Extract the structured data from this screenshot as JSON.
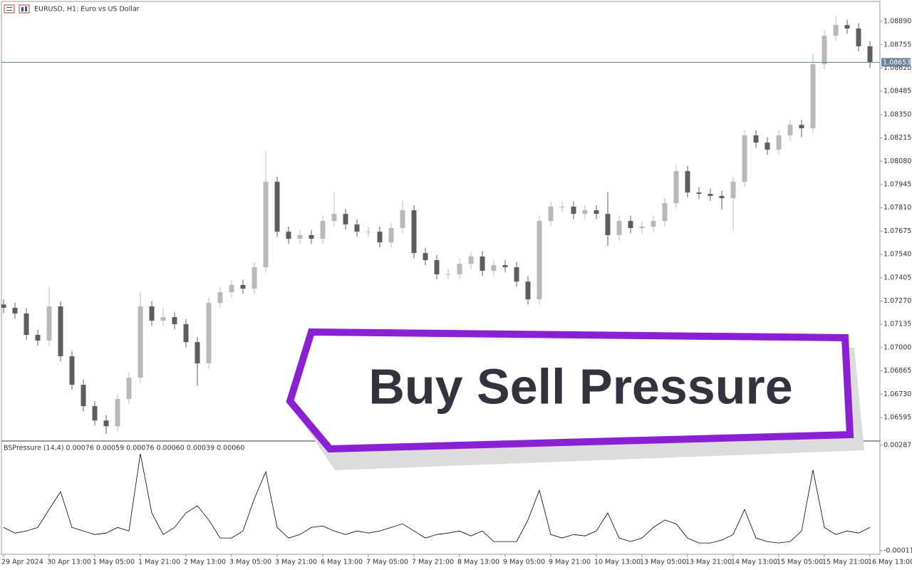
{
  "chart_data": [
    {
      "type": "candlestick",
      "title": "EURUSD, H1:  Euro vs US Dollar",
      "categories": [
        "29 Apr 2024",
        null,
        null,
        null,
        "30 Apr 13:00",
        null,
        null,
        null,
        "1 May 05:00",
        null,
        null,
        null,
        "1 May 21:00",
        null,
        null,
        null,
        "2 May 13:00",
        null,
        null,
        null,
        "3 May 05:00",
        null,
        null,
        null,
        "3 May 21:00",
        null,
        null,
        null,
        "6 May 13:00",
        null,
        null,
        null,
        "7 May 05:00",
        null,
        null,
        null,
        "7 May 21:00",
        null,
        null,
        null,
        "8 May 13:00",
        null,
        null,
        null,
        "9 May 05:00",
        null,
        null,
        null,
        "9 May 21:00",
        null,
        null,
        null,
        "10 May 13:00",
        null,
        null,
        null,
        "13 May 05:00",
        null,
        null,
        null,
        "13 May 21:00",
        null,
        null,
        null,
        "14 May 13:00",
        null,
        null,
        null,
        "15 May 05:00",
        null,
        null,
        null,
        "15 May 21:00",
        null,
        null,
        null,
        "16 May 13:00"
      ],
      "open": [
        1.0725,
        1.07231,
        1.07198,
        1.07074,
        1.07041,
        1.07239,
        1.0695,
        1.06785,
        1.06661,
        1.06578,
        1.06545,
        1.06702,
        1.06826,
        1.07239,
        1.07156,
        1.07177,
        1.07136,
        1.07032,
        1.06909,
        1.07259,
        1.07321,
        1.07363,
        1.07342,
        1.07466,
        1.07961,
        1.07672,
        1.07631,
        1.07652,
        1.07631,
        1.07734,
        1.07775,
        1.07714,
        1.07672,
        1.07672,
        1.0761,
        1.07693,
        1.07796,
        1.07548,
        1.07507,
        1.07425,
        1.07425,
        1.07486,
        1.07528,
        1.07445,
        1.07478,
        1.07466,
        1.07383,
        1.0728,
        1.07734,
        1.07817,
        1.07817,
        1.07775,
        1.07796,
        1.07775,
        1.07652,
        1.07734,
        1.07693,
        1.07701,
        1.07734,
        1.07837,
        1.08023,
        1.07899,
        1.07891,
        1.07879,
        1.07866,
        1.07961,
        1.0823,
        1.08188,
        1.08147,
        1.0823,
        1.08291,
        1.08271,
        1.08642,
        1.08807,
        1.08869,
        1.08849,
        1.08746
      ],
      "high": [
        1.0728,
        1.07261,
        1.07228,
        1.07104,
        1.0735,
        1.07269,
        1.0698,
        1.06815,
        1.06691,
        1.06608,
        1.06732,
        1.06856,
        1.0732,
        1.07269,
        1.0723,
        1.07207,
        1.07166,
        1.07062,
        1.07289,
        1.07351,
        1.07393,
        1.07393,
        1.07496,
        1.0814,
        1.07991,
        1.07702,
        1.07682,
        1.07682,
        1.07764,
        1.079,
        1.07805,
        1.07744,
        1.07702,
        1.07702,
        1.07723,
        1.0785,
        1.07826,
        1.07578,
        1.07537,
        1.07455,
        1.07516,
        1.07558,
        1.07558,
        1.07508,
        1.07508,
        1.07496,
        1.07413,
        1.07764,
        1.07847,
        1.07847,
        1.07847,
        1.07826,
        1.07826,
        1.079,
        1.07764,
        1.07764,
        1.07731,
        1.07764,
        1.07867,
        1.0806,
        1.08053,
        1.07929,
        1.07921,
        1.07909,
        1.07991,
        1.0826,
        1.0826,
        1.08218,
        1.0826,
        1.08321,
        1.08321,
        1.087,
        1.08837,
        1.0892,
        1.08899,
        1.08879,
        1.08776
      ],
      "low": [
        1.07201,
        1.07168,
        1.07044,
        1.07011,
        1.07011,
        1.0692,
        1.06755,
        1.06631,
        1.06548,
        1.065,
        1.06515,
        1.06672,
        1.06796,
        1.07126,
        1.07126,
        1.07106,
        1.07002,
        1.0678,
        1.06879,
        1.07229,
        1.07291,
        1.07312,
        1.07312,
        1.07436,
        1.07642,
        1.07601,
        1.07601,
        1.07601,
        1.07601,
        1.07704,
        1.07684,
        1.07642,
        1.07642,
        1.0758,
        1.0758,
        1.07663,
        1.07518,
        1.07477,
        1.07395,
        1.07395,
        1.07395,
        1.07456,
        1.07415,
        1.07415,
        1.07436,
        1.07353,
        1.0725,
        1.0725,
        1.07704,
        1.07787,
        1.07745,
        1.07745,
        1.07745,
        1.0759,
        1.07622,
        1.07663,
        1.07663,
        1.07671,
        1.07704,
        1.07807,
        1.07869,
        1.07861,
        1.07849,
        1.078,
        1.0768,
        1.07931,
        1.08158,
        1.08117,
        1.08117,
        1.082,
        1.0822,
        1.08241,
        1.08612,
        1.08777,
        1.08819,
        1.08716,
        1.0862
      ],
      "close": [
        1.07231,
        1.07198,
        1.07074,
        1.07041,
        1.07239,
        1.0695,
        1.06785,
        1.06661,
        1.06578,
        1.06545,
        1.06702,
        1.06826,
        1.07239,
        1.07156,
        1.07177,
        1.07136,
        1.07032,
        1.06909,
        1.07259,
        1.07321,
        1.07363,
        1.07342,
        1.07466,
        1.07961,
        1.07672,
        1.07631,
        1.07652,
        1.07631,
        1.07734,
        1.07775,
        1.07714,
        1.07672,
        1.07672,
        1.0761,
        1.07693,
        1.07796,
        1.07548,
        1.07507,
        1.07425,
        1.07425,
        1.07486,
        1.07528,
        1.07445,
        1.07478,
        1.07466,
        1.07383,
        1.0728,
        1.07734,
        1.07817,
        1.07817,
        1.07775,
        1.07796,
        1.07775,
        1.07652,
        1.07734,
        1.07693,
        1.07701,
        1.07734,
        1.07837,
        1.08023,
        1.07899,
        1.07891,
        1.07879,
        1.07866,
        1.07961,
        1.0823,
        1.08188,
        1.08147,
        1.0823,
        1.08291,
        1.08271,
        1.08642,
        1.08807,
        1.08869,
        1.08849,
        1.08746,
        1.08653
      ],
      "up_color": "#b8b8b8",
      "down_color": "#5e5e5e",
      "current_price": 1.08653,
      "price_line_color": "#6b7f99",
      "ylim": [
        1.06463,
        1.09006
      ],
      "yticks": [
        {
          "value": 1.0889,
          "label": "1.08890"
        },
        {
          "value": 1.08755,
          "label": "1.08755"
        },
        {
          "value": 1.0862,
          "label": "1.08620"
        },
        {
          "value": 1.08485,
          "label": "1.08485"
        },
        {
          "value": 1.0835,
          "label": "1.08350"
        },
        {
          "value": 1.08215,
          "label": "1.08215"
        },
        {
          "value": 1.0808,
          "label": "1.08080"
        },
        {
          "value": 1.07945,
          "label": "1.07945"
        },
        {
          "value": 1.0781,
          "label": "1.07810"
        },
        {
          "value": 1.07675,
          "label": "1.07675"
        },
        {
          "value": 1.0754,
          "label": "1.07540"
        },
        {
          "value": 1.07405,
          "label": "1.07405"
        },
        {
          "value": 1.0727,
          "label": "1.07270"
        },
        {
          "value": 1.07135,
          "label": "1.07135"
        },
        {
          "value": 1.07,
          "label": "1.07000"
        },
        {
          "value": 1.06865,
          "label": "1.06865"
        },
        {
          "value": 1.0673,
          "label": "1.06730"
        },
        {
          "value": 1.06595,
          "label": "1.06595"
        }
      ]
    },
    {
      "type": "line",
      "title": "BSPressure (14,4) 0.00076 0.00059 0.00076 0.00060 0.00039 0.00060",
      "values": [
        0.00055,
        0.00039,
        0.00045,
        0.00055,
        0.00106,
        0.00156,
        0.00055,
        0.00045,
        0.00035,
        0.00039,
        0.00055,
        0.00045,
        0.00263,
        0.00096,
        0.00035,
        0.00055,
        0.00096,
        0.00116,
        0.00076,
        0.00025,
        0.00025,
        0.00045,
        0.00136,
        0.00212,
        0.00055,
        0.00025,
        0.00035,
        0.00055,
        0.00059,
        0.00045,
        0.00035,
        0.00045,
        0.00039,
        0.00045,
        0.00055,
        0.00065,
        0.00045,
        0.00025,
        0.00035,
        0.00039,
        0.00045,
        0.00031,
        0.00045,
        0.00015,
        0.00015,
        0.00015,
        0.00076,
        0.0016,
        0.00035,
        0.00025,
        0.00035,
        0.00031,
        0.00045,
        0.00096,
        0.00025,
        0.00015,
        0.00025,
        0.00055,
        0.00076,
        0.00065,
        0.00025,
        0.00011,
        0.00011,
        0.00019,
        0.00035,
        0.00106,
        0.00025,
        0.00015,
        0.00011,
        0.00015,
        0.00045,
        0.00217,
        0.00055,
        0.00035,
        0.00045,
        0.00039,
        0.00055
      ],
      "color": "#000000",
      "ylim": [
        -0.00021,
        0.00297
      ],
      "yticks": [
        0.00287,
        -0.00011
      ]
    }
  ],
  "banner": {
    "text": "Buy Sell Pressure"
  }
}
